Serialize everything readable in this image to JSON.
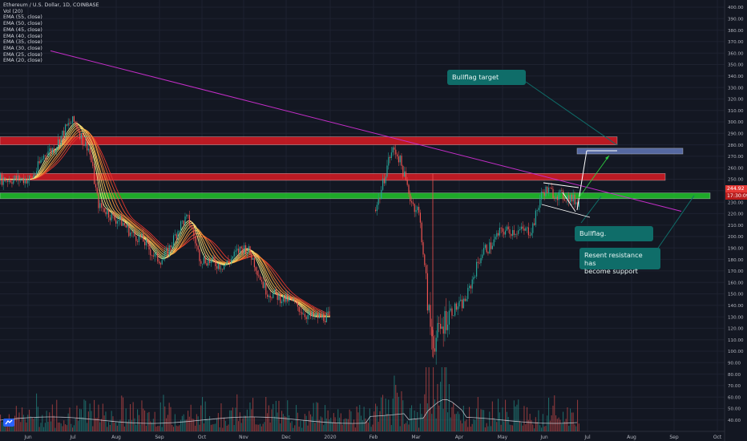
{
  "header": {
    "title": "Ethereum / U.S. Dollar, 1D, COINBASE",
    "indicators": [
      "Vol (20)",
      "EMA (55, close)",
      "EMA (50, close)",
      "EMA (45, close)",
      "EMA (40, close)",
      "EMA (35, close)",
      "EMA (30, close)",
      "EMA (25, close)",
      "EMA (20, close)"
    ]
  },
  "price_labels": {
    "last_price": "244.92",
    "countdown": "17:30:09"
  },
  "notes": {
    "bullflag_target": "Bullflag target",
    "bullflag": "Bullflag.",
    "support_line1": "Resent resistance has",
    "support_line2": "become support"
  },
  "colors": {
    "background": "#131722",
    "grid": "#1e2230",
    "axis_text": "#b2b5be",
    "up_candle": "#26a69a",
    "down_candle": "#ef5350",
    "trendline": "#c42ec8",
    "resistance_zone": "#d91b24",
    "support_zone": "#21c32b",
    "target_zone": "#6177b8",
    "note_box": "#0f6d69",
    "ema_fast": "#f6ef8e",
    "ema_slow": "#e2342d",
    "volume_line": "#d1d4dc"
  },
  "chart_data": {
    "type": "candlestick",
    "title": "Ethereum / U.S. Dollar, 1D, COINBASE",
    "x_ticks": [
      "Jun",
      "Jul",
      "Aug",
      "Sep",
      "Oct",
      "Nov",
      "Dec",
      "2020",
      "Feb",
      "Mar",
      "Apr",
      "May",
      "Jun",
      "Jul",
      "Aug",
      "Sep",
      "Oct"
    ],
    "y_ticks": [
      "400.00",
      "390.00",
      "380.00",
      "370.00",
      "360.00",
      "350.00",
      "340.00",
      "330.00",
      "320.00",
      "310.00",
      "300.00",
      "290.00",
      "280.00",
      "270.00",
      "260.00",
      "250.00",
      "240.00",
      "230.00",
      "220.00",
      "210.00",
      "200.00",
      "190.00",
      "180.00",
      "170.00",
      "160.00",
      "150.00",
      "140.00",
      "130.00",
      "120.00",
      "110.00",
      "100.00",
      "90.00",
      "80.00",
      "70.00",
      "60.00",
      "50.00",
      "40.00"
    ],
    "ylim": [
      35,
      402
    ],
    "price_series": {
      "name": "ETHUSD",
      "x": [
        "Jun",
        "Jun 15",
        "Jul",
        "Jul 10",
        "Jul 20",
        "Aug",
        "Aug 15",
        "Sep",
        "Sep 20",
        "Oct",
        "Oct 15",
        "Nov",
        "Nov 20",
        "Dec",
        "Dec 18",
        "2020",
        "Jan 15",
        "Feb",
        "Feb 15",
        "Mar",
        "Mar 13",
        "Mar 25",
        "Apr",
        "Apr 20",
        "May",
        "May 20",
        "Jun",
        "Jun 15",
        "Jun 25"
      ],
      "values": [
        250,
        275,
        300,
        280,
        225,
        215,
        200,
        180,
        215,
        180,
        175,
        190,
        150,
        145,
        130,
        130,
        165,
        225,
        275,
        225,
        110,
        135,
        140,
        190,
        205,
        205,
        240,
        235,
        230
      ]
    },
    "zones": [
      {
        "type": "resistance",
        "from": 280,
        "to": 287
      },
      {
        "type": "resistance",
        "from": 249,
        "to": 255
      },
      {
        "type": "support",
        "from": 233,
        "to": 238
      },
      {
        "type": "target",
        "from": 272,
        "to": 277
      }
    ],
    "trendline": {
      "start": {
        "x": "Jun",
        "y": 362
      },
      "end": {
        "x": "Sep",
        "y": 222
      }
    },
    "current_price": 244.92,
    "volume": {
      "ylim": [
        0,
        100
      ]
    }
  }
}
